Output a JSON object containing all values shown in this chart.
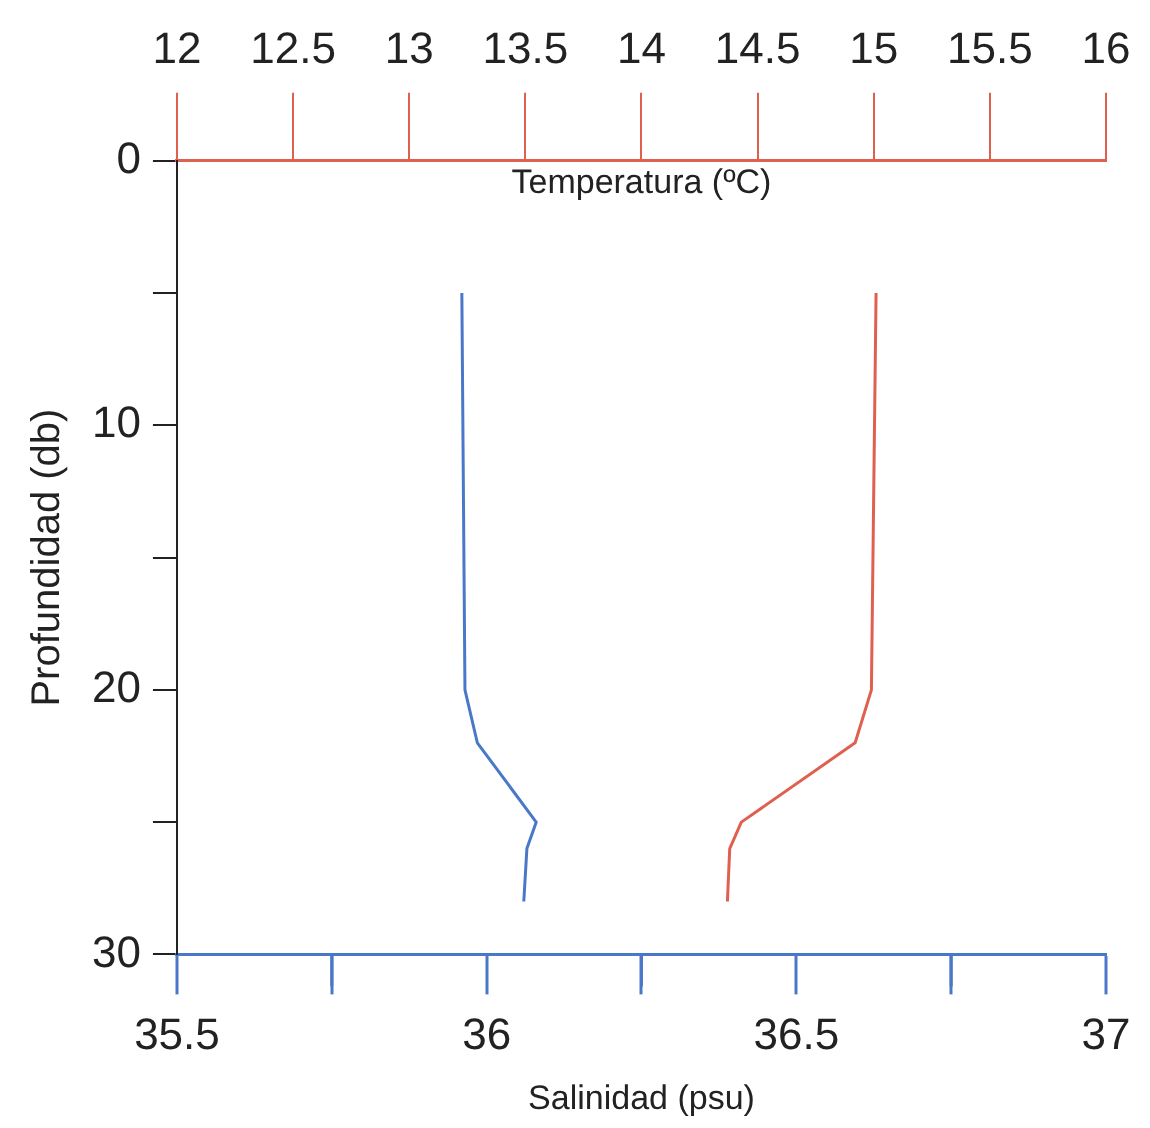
{
  "chart_data": {
    "type": "line",
    "xlabel": "Salinidad (psu)",
    "x2label": "Temperatura (ºC)",
    "ylabel": "Profundidad (db)",
    "xlim": [
      35.5,
      37
    ],
    "xticks": [
      35.5,
      {
        "value": 35.75,
        "label": null
      },
      36,
      {
        "value": 36.25,
        "label": null
      },
      36.5,
      {
        "value": 36.75,
        "label": null
      },
      37
    ],
    "x2lim": [
      12,
      16
    ],
    "x2ticks": [
      12,
      12.5,
      13,
      13.5,
      14,
      14.5,
      15,
      15.5,
      16
    ],
    "ylim": [
      30,
      0
    ],
    "yticks": [
      0,
      {
        "value": 5,
        "label": null
      },
      10,
      {
        "value": 15,
        "label": null
      },
      20,
      {
        "value": 25,
        "label": null
      },
      30
    ],
    "series": [
      {
        "color": "#4a78c8",
        "x": [
          35.96,
          35.965,
          35.985,
          36.08,
          36.065,
          36.06
        ],
        "values": [
          5,
          20,
          22,
          25,
          26,
          28
        ]
      },
      {
        "color": "#e06050",
        "axis": "x2",
        "x": [
          15.01,
          14.99,
          14.92,
          14.43,
          14.38,
          14.37
        ],
        "values": [
          5,
          20,
          22,
          25,
          26,
          28
        ]
      }
    ],
    "grid": false,
    "legend": false,
    "marker": "none",
    "line_style": "solid"
  }
}
